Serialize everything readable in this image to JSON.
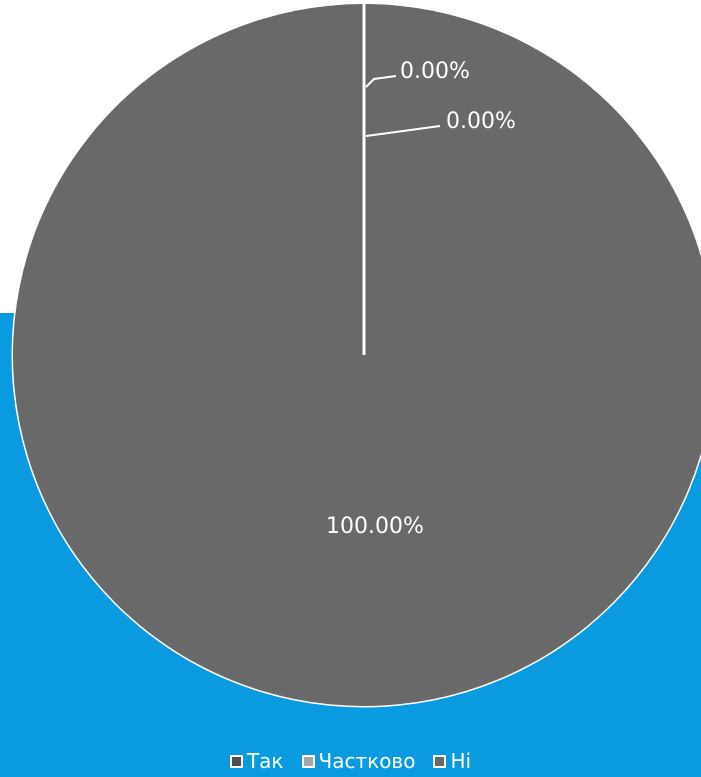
{
  "chart_data": {
    "type": "pie",
    "title": "",
    "categories": [
      "Так",
      "Частково",
      "Ні"
    ],
    "values": [
      0,
      0,
      100
    ],
    "data_labels": [
      "0.00%",
      "0.00%",
      "100.00%"
    ],
    "colors": [
      "#4d4d4d",
      "#a6a6a6",
      "#696969"
    ],
    "legend": "bottom"
  },
  "background": {
    "accent": "#0a9ae0"
  }
}
